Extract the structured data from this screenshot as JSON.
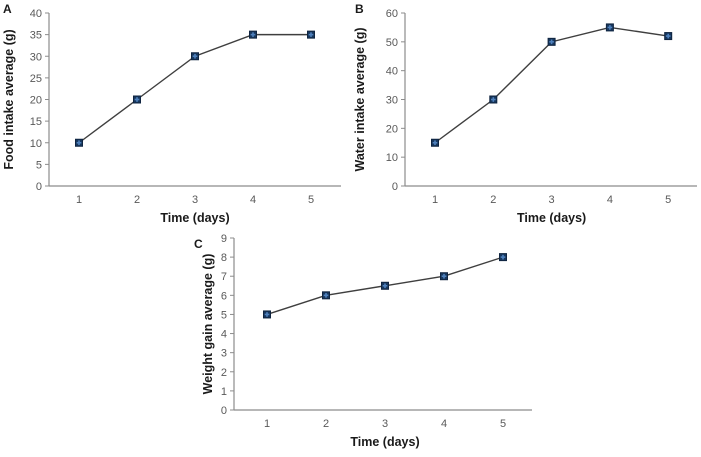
{
  "figure": {
    "background": "#ffffff"
  },
  "colors": {
    "line": "#3f3f3f",
    "marker_fill": "#17375e",
    "marker_border": "#0f2440",
    "marker_cross": "#4f81bd",
    "axis": "#8c8c8c",
    "tick_label": "#595959",
    "axis_title": "#1a1a1a"
  },
  "chart_data": [
    {
      "type": "line",
      "panel_label": "A",
      "title": "",
      "x": [
        1,
        2,
        3,
        4,
        5
      ],
      "values": [
        10,
        20,
        30,
        35,
        35
      ],
      "xlabel": "Time (days)",
      "ylabel": "Food intake average (g)",
      "ylim": [
        0,
        40
      ],
      "ytick_step": 5,
      "xticks": [
        "1",
        "2",
        "3",
        "4",
        "5"
      ],
      "grid": false,
      "legend_position": "none",
      "marker": "square-cross"
    },
    {
      "type": "line",
      "panel_label": "B",
      "title": "",
      "x": [
        1,
        2,
        3,
        4,
        5
      ],
      "values": [
        15,
        30,
        50,
        55,
        52
      ],
      "xlabel": "Time (days)",
      "ylabel": "Water intake average (g)",
      "ylim": [
        0,
        60
      ],
      "ytick_step": 10,
      "xticks": [
        "1",
        "2",
        "3",
        "4",
        "5"
      ],
      "grid": false,
      "legend_position": "none",
      "marker": "square-cross"
    },
    {
      "type": "line",
      "panel_label": "C",
      "title": "",
      "x": [
        1,
        2,
        3,
        4,
        5
      ],
      "values": [
        5,
        6,
        6.5,
        7,
        8
      ],
      "xlabel": "Time (days)",
      "ylabel": "Weight gain average (g)",
      "ylim": [
        0,
        9
      ],
      "ytick_step": 1,
      "xticks": [
        "1",
        "2",
        "3",
        "4",
        "5"
      ],
      "grid": false,
      "legend_position": "none",
      "marker": "square-cross"
    }
  ]
}
